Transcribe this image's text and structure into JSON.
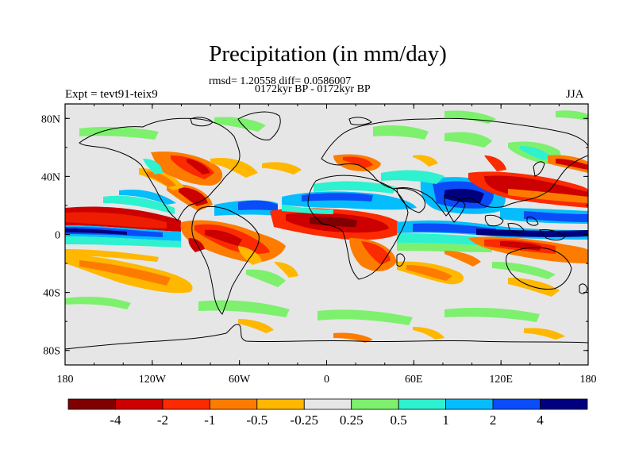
{
  "title": "Precipitation (in mm/day)",
  "stats": "rmsd= 1.20558 diff= 0.0586007",
  "period": "0172kyr BP - 0172kyr BP",
  "left_label": "Expt = tevt91-teix9",
  "right_label": "JJA",
  "x_axis": {
    "ticks": [
      "180",
      "120W",
      "60W",
      "0",
      "60E",
      "120E",
      "180"
    ],
    "range": [
      -180,
      180
    ]
  },
  "y_axis": {
    "ticks": [
      "80N",
      "40N",
      "0",
      "40S",
      "80S"
    ],
    "range": [
      -90,
      90
    ]
  },
  "colorbar": {
    "colors": [
      "#7e0000",
      "#cc0000",
      "#fc2a00",
      "#fd7c00",
      "#ffb700",
      "#e6e6e6",
      "#7df06e",
      "#2ef1d0",
      "#05bdfc",
      "#0a4cf8",
      "#00007e"
    ],
    "labels": [
      "-4",
      "-2",
      "-1",
      "-0.5",
      "-0.25",
      "0.25",
      "0.5",
      "1",
      "2",
      "4"
    ]
  },
  "map_background": "#e6e6e6"
}
